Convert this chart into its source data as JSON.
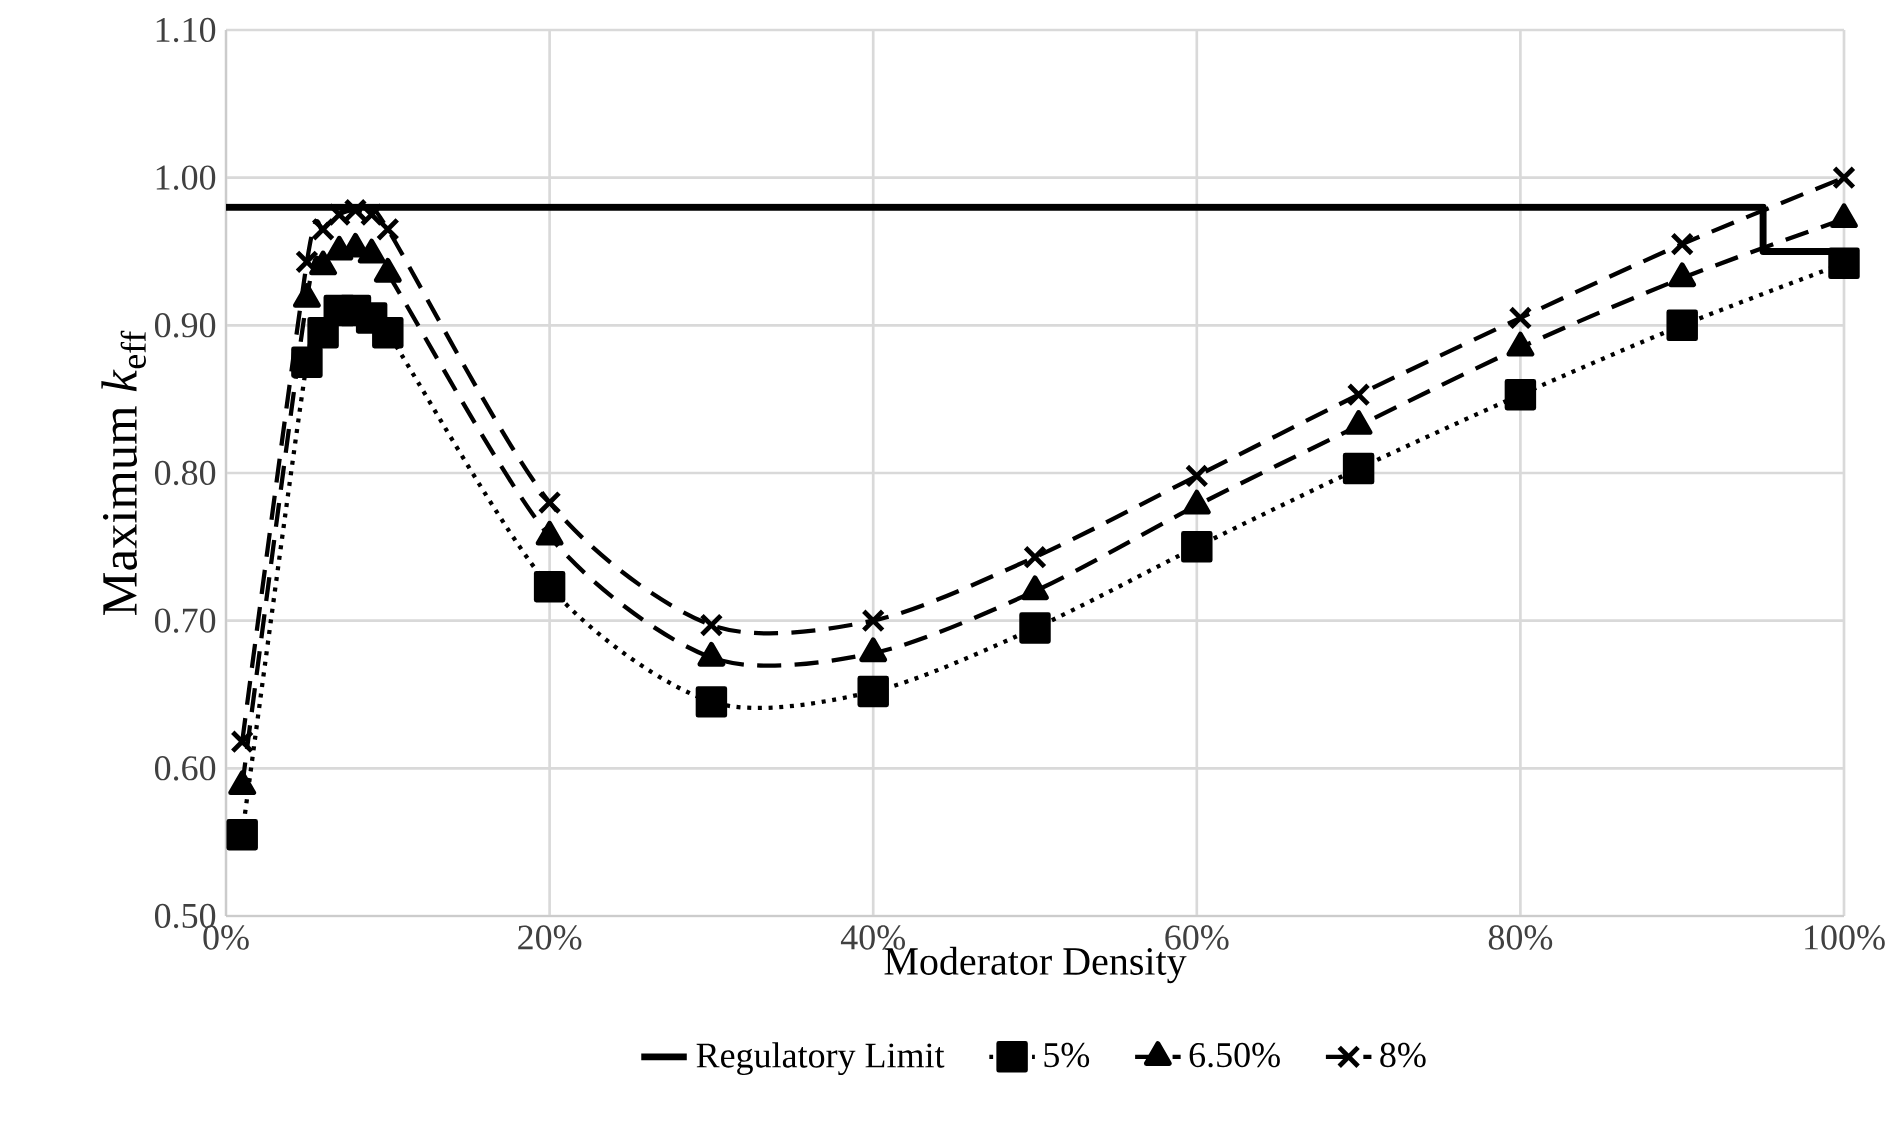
{
  "chart_data": {
    "type": "line",
    "xlabel": "Moderator Density",
    "ylabel": "Maximum *k*$_{eff}$",
    "xlim": [
      0,
      100
    ],
    "ylim": [
      0.5,
      1.1
    ],
    "xticks": [
      {
        "value": 0,
        "label": "0%"
      },
      {
        "value": 20,
        "label": "20%"
      },
      {
        "value": 40,
        "label": "40%"
      },
      {
        "value": 60,
        "label": "60%"
      },
      {
        "value": 80,
        "label": "80%"
      },
      {
        "value": 100,
        "label": "100%"
      }
    ],
    "yticks": [
      {
        "value": 0.5,
        "label": "0.50"
      },
      {
        "value": 0.6,
        "label": "0.60"
      },
      {
        "value": 0.7,
        "label": "0.70"
      },
      {
        "value": 0.8,
        "label": "0.80"
      },
      {
        "value": 0.9,
        "label": "0.90"
      },
      {
        "value": 1.0,
        "label": "1.00"
      },
      {
        "value": 1.1,
        "label": "1.10"
      }
    ],
    "grid": true,
    "legend": "bottom",
    "series": [
      {
        "name": "Regulatory Limit",
        "color": "#000000",
        "type": "step",
        "marker": "none",
        "line_style": "solid",
        "x": [
          0,
          95,
          100
        ],
        "values": [
          0.98,
          0.95,
          0.95
        ]
      },
      {
        "name": "5%",
        "color": "#000000",
        "marker": "square",
        "line_style": "dotted",
        "x": [
          1,
          5,
          6,
          7,
          8,
          9,
          10,
          20,
          30,
          40,
          50,
          60,
          70,
          80,
          90,
          100
        ],
        "values": [
          0.555,
          0.875,
          0.895,
          0.91,
          0.91,
          0.905,
          0.895,
          0.723,
          0.645,
          0.652,
          0.695,
          0.75,
          0.803,
          0.853,
          0.9,
          0.942
        ]
      },
      {
        "name": "6.50%",
        "color": "#000000",
        "marker": "triangle",
        "line_style": "dashed",
        "x": [
          1,
          5,
          6,
          7,
          8,
          9,
          10,
          20,
          30,
          40,
          50,
          60,
          70,
          80,
          90,
          100
        ],
        "values": [
          0.588,
          0.918,
          0.94,
          0.95,
          0.952,
          0.948,
          0.935,
          0.757,
          0.675,
          0.678,
          0.72,
          0.778,
          0.832,
          0.885,
          0.932,
          0.972
        ]
      },
      {
        "name": "8%",
        "color": "#000000",
        "marker": "cross",
        "line_style": "dashed",
        "x": [
          1,
          5,
          6,
          7,
          8,
          9,
          10,
          20,
          30,
          40,
          50,
          60,
          70,
          80,
          90,
          100
        ],
        "values": [
          0.618,
          0.943,
          0.965,
          0.975,
          0.978,
          0.975,
          0.965,
          0.78,
          0.697,
          0.7,
          0.743,
          0.798,
          0.853,
          0.905,
          0.955,
          1.0
        ]
      }
    ]
  }
}
